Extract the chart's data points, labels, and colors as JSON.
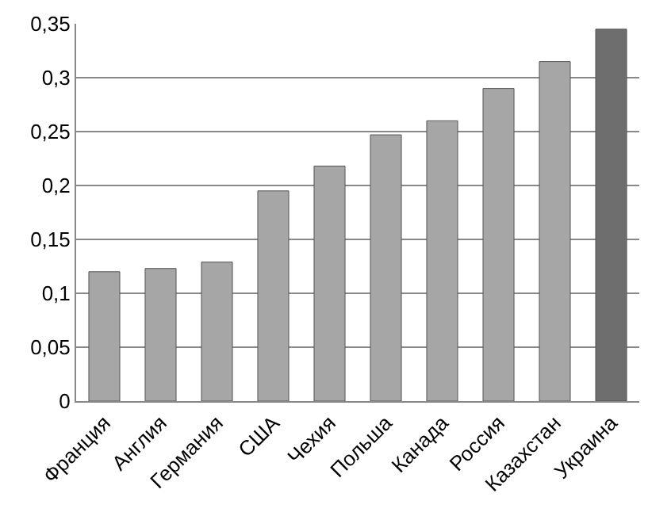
{
  "chart_data": {
    "type": "bar",
    "categories": [
      "Франция",
      "Англия",
      "Германия",
      "США",
      "Чехия",
      "Польша",
      "Канада",
      "Россия",
      "Казахстан",
      "Украина"
    ],
    "values": [
      0.12,
      0.123,
      0.129,
      0.195,
      0.218,
      0.247,
      0.26,
      0.29,
      0.315,
      0.345
    ],
    "colors": [
      "#a6a6a6",
      "#a6a6a6",
      "#a6a6a6",
      "#a6a6a6",
      "#a6a6a6",
      "#a6a6a6",
      "#a6a6a6",
      "#a6a6a6",
      "#a6a6a6",
      "#6e6e6e"
    ],
    "ylim": [
      0,
      0.35
    ],
    "yticks": [
      {
        "value": 0,
        "label": "0"
      },
      {
        "value": 0.05,
        "label": "0,05"
      },
      {
        "value": 0.1,
        "label": "0,1"
      },
      {
        "value": 0.15,
        "label": "0,15"
      },
      {
        "value": 0.2,
        "label": "0,2"
      },
      {
        "value": 0.25,
        "label": "0,25"
      },
      {
        "value": 0.3,
        "label": "0,3"
      },
      {
        "value": 0.35,
        "label": "0,35"
      }
    ],
    "grid": "y"
  }
}
